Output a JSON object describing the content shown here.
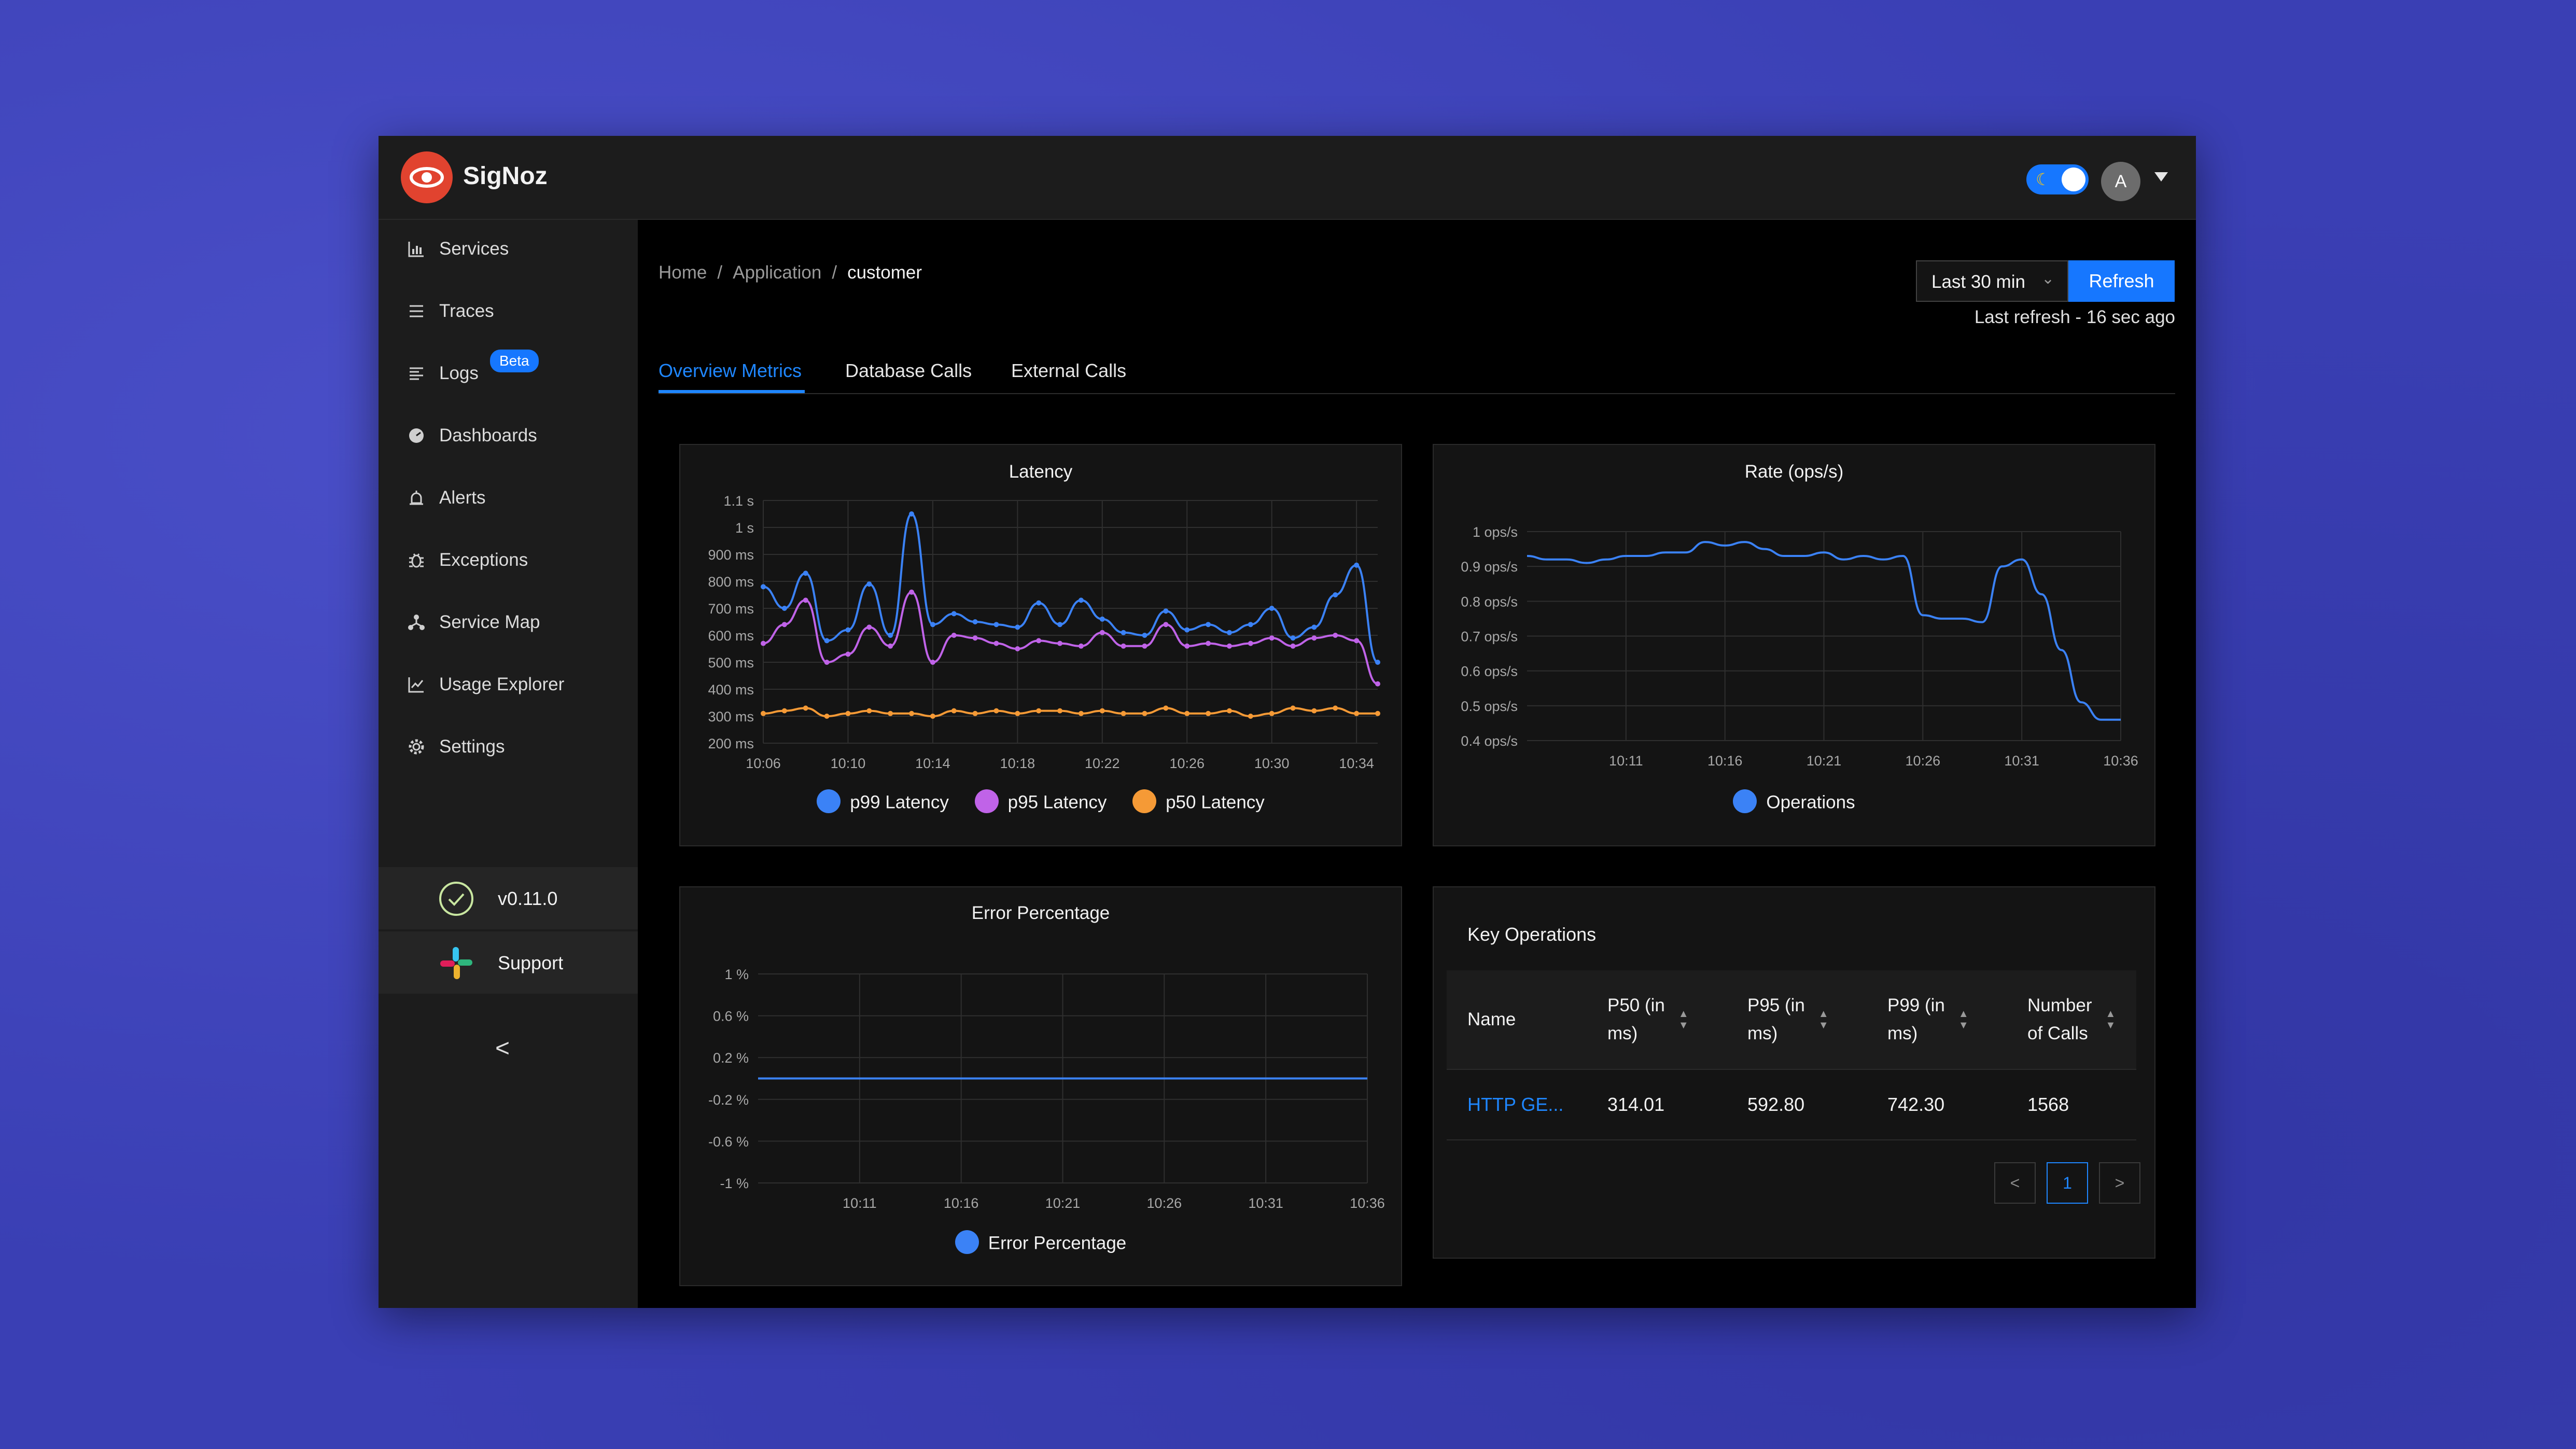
{
  "app": {
    "name": "SigNoz",
    "user_initial": "A"
  },
  "sidebar": {
    "items": [
      {
        "label": "Services",
        "icon": "bar-chart-icon"
      },
      {
        "label": "Traces",
        "icon": "list-icon"
      },
      {
        "label": "Logs",
        "icon": "logs-icon",
        "badge": "Beta"
      },
      {
        "label": "Dashboards",
        "icon": "dashboard-icon"
      },
      {
        "label": "Alerts",
        "icon": "alarm-icon"
      },
      {
        "label": "Exceptions",
        "icon": "bug-icon"
      },
      {
        "label": "Service Map",
        "icon": "deployment-icon"
      },
      {
        "label": "Usage Explorer",
        "icon": "line-chart-icon"
      },
      {
        "label": "Settings",
        "icon": "gear-icon"
      }
    ],
    "version": "v0.11.0",
    "support": "Support",
    "collapse": "<"
  },
  "breadcrumb": {
    "home": "Home",
    "application": "Application",
    "current": "customer",
    "separator": "/"
  },
  "toolbar": {
    "time_range": "Last 30 min",
    "refresh_label": "Refresh",
    "last_refresh": "Last refresh - 16 sec ago"
  },
  "tabs": [
    "Overview Metrics",
    "Database Calls",
    "External Calls"
  ],
  "colors": {
    "accent": "#1677ff",
    "p99": "#3b82f6",
    "p95": "#c063e8",
    "p50": "#f59a36"
  },
  "chart_data": [
    {
      "type": "line",
      "title": "Latency",
      "x_ticks": [
        "10:06",
        "10:10",
        "10:14",
        "10:18",
        "10:22",
        "10:26",
        "10:30",
        "10:34"
      ],
      "y_ticks": [
        "200 ms",
        "300 ms",
        "400 ms",
        "500 ms",
        "600 ms",
        "700 ms",
        "800 ms",
        "900 ms",
        "1 s",
        "1.1 s"
      ],
      "x_range": [
        "10:06",
        "10:35"
      ],
      "ylim": [
        200,
        1100
      ],
      "x": [
        "10:06",
        "10:07",
        "10:08",
        "10:09",
        "10:10",
        "10:11",
        "10:12",
        "10:13",
        "10:14",
        "10:15",
        "10:16",
        "10:17",
        "10:18",
        "10:19",
        "10:20",
        "10:21",
        "10:22",
        "10:23",
        "10:24",
        "10:25",
        "10:26",
        "10:27",
        "10:28",
        "10:29",
        "10:30",
        "10:31",
        "10:32",
        "10:33",
        "10:34",
        "10:35"
      ],
      "series": [
        {
          "name": "p99 Latency",
          "color": "#3b82f6",
          "values": [
            780,
            700,
            830,
            580,
            620,
            790,
            600,
            1050,
            640,
            680,
            650,
            640,
            630,
            720,
            640,
            730,
            660,
            610,
            600,
            690,
            620,
            640,
            610,
            640,
            700,
            590,
            630,
            750,
            860,
            500
          ]
        },
        {
          "name": "p95 Latency",
          "color": "#c063e8",
          "values": [
            570,
            640,
            730,
            500,
            530,
            630,
            560,
            760,
            500,
            600,
            590,
            570,
            550,
            580,
            570,
            560,
            610,
            560,
            560,
            640,
            560,
            570,
            560,
            570,
            590,
            560,
            590,
            600,
            580,
            420
          ]
        },
        {
          "name": "p50 Latency",
          "color": "#f59a36",
          "values": [
            310,
            320,
            330,
            300,
            310,
            320,
            310,
            310,
            300,
            320,
            310,
            320,
            310,
            320,
            320,
            310,
            320,
            310,
            310,
            330,
            310,
            310,
            320,
            300,
            310,
            330,
            320,
            330,
            310,
            310
          ]
        }
      ],
      "grid": true,
      "legend": "bottom"
    },
    {
      "type": "line",
      "title": "Rate (ops/s)",
      "x_ticks": [
        "10:11",
        "10:16",
        "10:21",
        "10:26",
        "10:31",
        "10:36"
      ],
      "y_ticks": [
        "0.4 ops/s",
        "0.5 ops/s",
        "0.6 ops/s",
        "0.7 ops/s",
        "0.8 ops/s",
        "0.9 ops/s",
        "1 ops/s"
      ],
      "x_range": [
        "10:06",
        "10:36"
      ],
      "ylim": [
        0.4,
        1.0
      ],
      "x": [
        "10:06",
        "10:07",
        "10:08",
        "10:09",
        "10:10",
        "10:11",
        "10:12",
        "10:13",
        "10:14",
        "10:15",
        "10:16",
        "10:17",
        "10:18",
        "10:19",
        "10:20",
        "10:21",
        "10:22",
        "10:23",
        "10:24",
        "10:25",
        "10:26",
        "10:27",
        "10:28",
        "10:29",
        "10:30",
        "10:31",
        "10:32",
        "10:33",
        "10:34",
        "10:35",
        "10:36"
      ],
      "series": [
        {
          "name": "Operations",
          "color": "#3b82f6",
          "values": [
            0.93,
            0.92,
            0.92,
            0.91,
            0.92,
            0.93,
            0.93,
            0.94,
            0.94,
            0.97,
            0.96,
            0.97,
            0.95,
            0.93,
            0.93,
            0.94,
            0.92,
            0.93,
            0.92,
            0.93,
            0.76,
            0.75,
            0.75,
            0.74,
            0.9,
            0.92,
            0.82,
            0.66,
            0.51,
            0.46,
            0.46
          ]
        }
      ],
      "grid": true,
      "legend": "bottom"
    },
    {
      "type": "line",
      "title": "Error Percentage",
      "x_ticks": [
        "10:11",
        "10:16",
        "10:21",
        "10:26",
        "10:31",
        "10:36"
      ],
      "y_ticks": [
        "-1 %",
        "-0.6 %",
        "-0.2 %",
        "0.2 %",
        "0.6 %",
        "1 %"
      ],
      "x_range": [
        "10:06",
        "10:36"
      ],
      "ylim": [
        -1,
        1
      ],
      "x": [
        "10:06",
        "10:11",
        "10:16",
        "10:21",
        "10:26",
        "10:31",
        "10:36"
      ],
      "series": [
        {
          "name": "Error Percentage",
          "color": "#3b82f6",
          "values": [
            0,
            0,
            0,
            0,
            0,
            0,
            0
          ]
        }
      ],
      "grid": true,
      "legend": "bottom"
    },
    {
      "type": "table",
      "title": "Key Operations",
      "columns": [
        "Name",
        "P50 (in ms)",
        "P95 (in ms)",
        "P99 (in ms)",
        "Number of Calls"
      ],
      "header_lines": [
        [
          "Name"
        ],
        [
          "P50 (in",
          "ms)"
        ],
        [
          "P95 (in",
          "ms)"
        ],
        [
          "P99 (in",
          "ms)"
        ],
        [
          "Number",
          "of Calls"
        ]
      ],
      "rows": [
        [
          "HTTP GE...",
          "314.01",
          "592.80",
          "742.30",
          "1568"
        ]
      ],
      "pagination": {
        "prev": "<",
        "page": "1",
        "next": ">"
      }
    }
  ]
}
